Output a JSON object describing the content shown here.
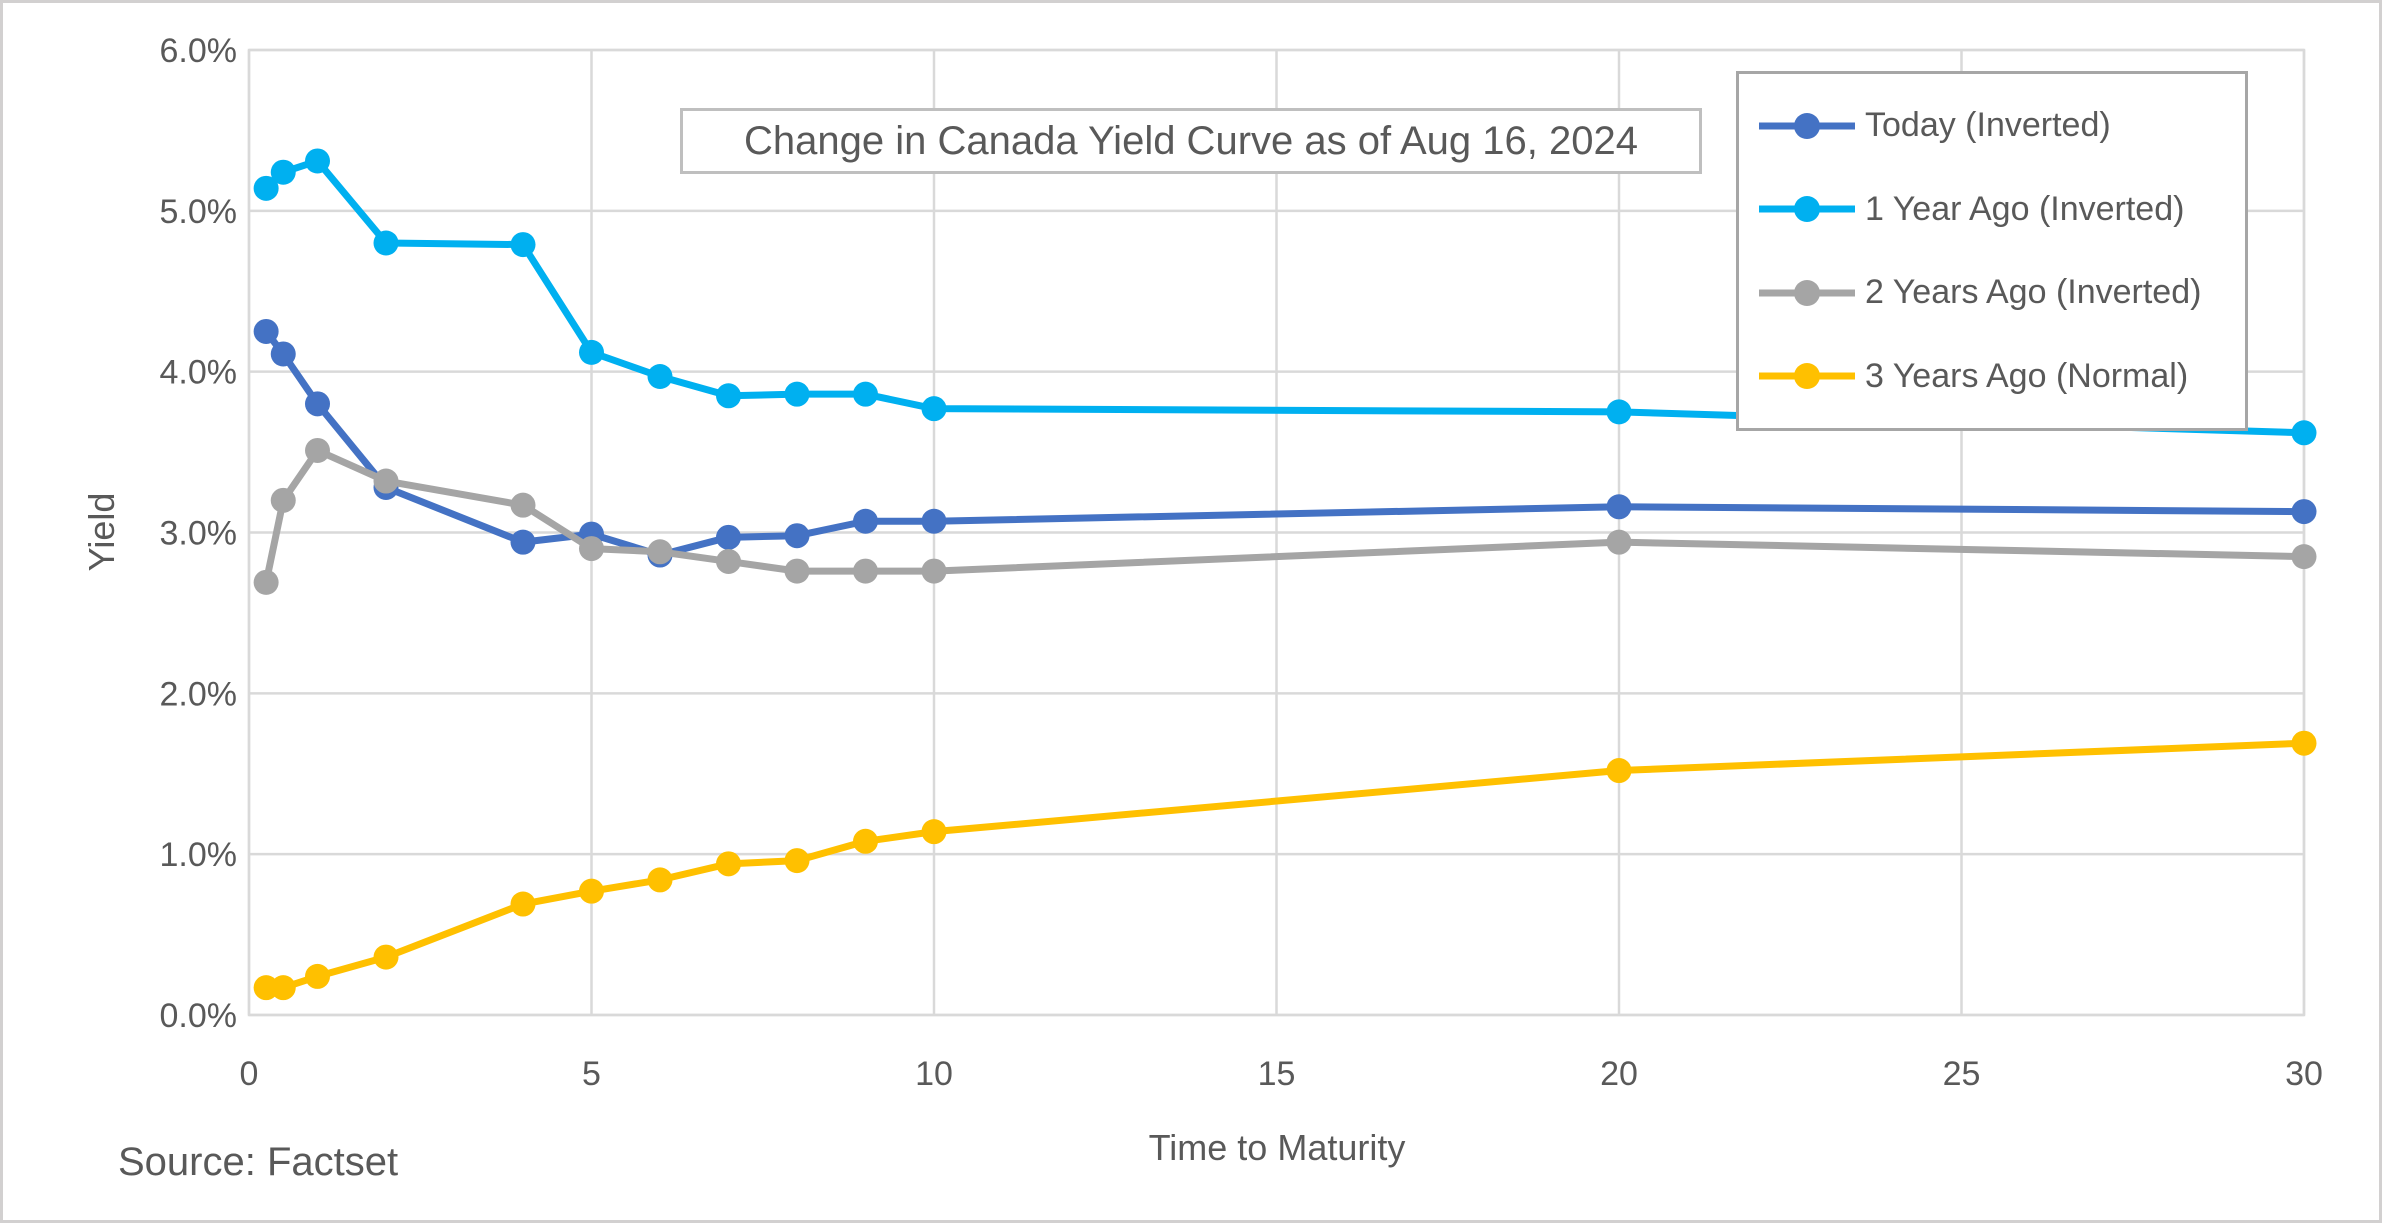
{
  "chart_data": {
    "type": "line",
    "title": "Change in Canada Yield Curve as of Aug 16, 2024",
    "xlabel": "Time to Maturity",
    "ylabel": "Yield",
    "xlim": [
      0,
      30
    ],
    "ylim": [
      0,
      6
    ],
    "x_ticks": [
      0,
      5,
      10,
      15,
      20,
      25,
      30
    ],
    "x_tick_labels": [
      "0",
      "5",
      "10",
      "15",
      "20",
      "25",
      "30"
    ],
    "y_ticks": [
      0,
      1,
      2,
      3,
      4,
      5,
      6
    ],
    "y_tick_labels": [
      "0.0%",
      "1.0%",
      "2.0%",
      "3.0%",
      "4.0%",
      "5.0%",
      "6.0%"
    ],
    "grid": true,
    "legend_position": "top-right",
    "x": [
      0.25,
      0.5,
      1,
      2,
      4,
      5,
      6,
      7,
      8,
      9,
      10,
      20,
      30
    ],
    "series": [
      {
        "name": "Today (Inverted)",
        "color": "#4472C4",
        "values": [
          4.25,
          4.11,
          3.8,
          3.28,
          2.94,
          2.99,
          2.86,
          2.97,
          2.98,
          3.07,
          3.07,
          3.16,
          3.13
        ]
      },
      {
        "name": "1 Year Ago (Inverted)",
        "color": "#00B0F0",
        "values": [
          5.14,
          5.24,
          5.31,
          4.8,
          4.79,
          4.12,
          3.97,
          3.85,
          3.86,
          3.86,
          3.77,
          3.75,
          3.62
        ]
      },
      {
        "name": "2 Years Ago (Inverted)",
        "color": "#A5A5A5",
        "values": [
          2.69,
          3.2,
          3.51,
          3.32,
          3.17,
          2.9,
          2.88,
          2.82,
          2.76,
          2.76,
          2.76,
          2.94,
          2.85
        ]
      },
      {
        "name": "3 Years Ago (Normal)",
        "color": "#FFC000",
        "values": [
          0.17,
          0.17,
          0.24,
          0.36,
          0.69,
          0.77,
          0.84,
          0.94,
          0.96,
          1.08,
          1.14,
          1.52,
          1.69
        ]
      }
    ]
  },
  "source": "Source: Factset",
  "colors": {
    "grid": "#D9D9D9",
    "plot_border": "#D9D9D9",
    "figure_border": "#D2D0D0",
    "text": "#595959",
    "title_border": "#BFBFBF",
    "legend_border": "#A6A6A6",
    "background": "#FFFFFF"
  }
}
